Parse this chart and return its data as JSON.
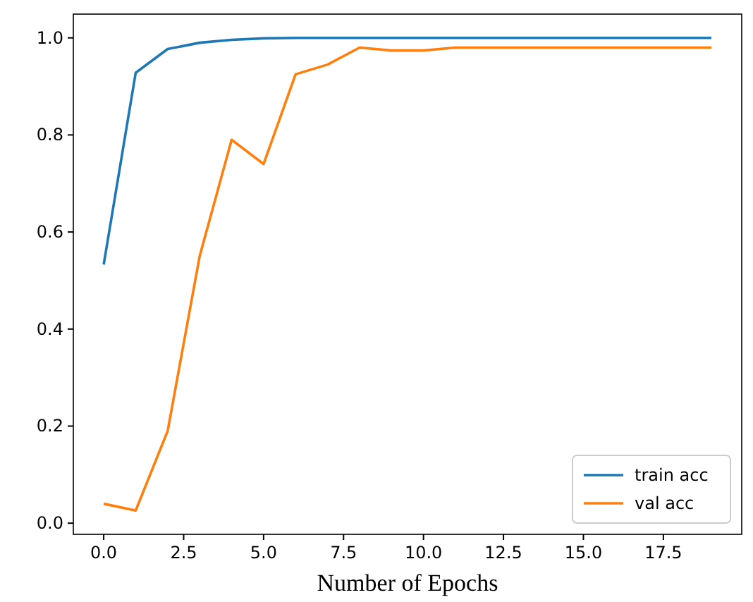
{
  "chart_data": {
    "type": "line",
    "xlabel": "Number of Epochs",
    "x": [
      0,
      1,
      2,
      3,
      4,
      5,
      6,
      7,
      8,
      9,
      10,
      11,
      12,
      13,
      14,
      15,
      16,
      17,
      18,
      19
    ],
    "series": [
      {
        "name": "train acc",
        "color": "#1f77b4",
        "values": [
          0.533,
          0.928,
          0.977,
          0.99,
          0.996,
          0.999,
          1.0,
          1.0,
          1.0,
          1.0,
          1.0,
          1.0,
          1.0,
          1.0,
          1.0,
          1.0,
          1.0,
          1.0,
          1.0,
          1.0
        ]
      },
      {
        "name": "val acc",
        "color": "#ff7f0e",
        "values": [
          0.04,
          0.026,
          0.19,
          0.55,
          0.79,
          0.74,
          0.925,
          0.945,
          0.98,
          0.974,
          0.974,
          0.98,
          0.98,
          0.98,
          0.98,
          0.98,
          0.98,
          0.98,
          0.98,
          0.98
        ]
      }
    ],
    "xlim": [
      -0.95,
      19.95
    ],
    "ylim": [
      -0.023,
      1.049
    ],
    "xticks": [
      {
        "value": 0,
        "label": "0.0"
      },
      {
        "value": 2.5,
        "label": "2.5"
      },
      {
        "value": 5,
        "label": "5.0"
      },
      {
        "value": 7.5,
        "label": "7.5"
      },
      {
        "value": 10,
        "label": "10.0"
      },
      {
        "value": 12.5,
        "label": "12.5"
      },
      {
        "value": 15,
        "label": "15.0"
      },
      {
        "value": 17.5,
        "label": "17.5"
      }
    ],
    "yticks": [
      {
        "value": 0,
        "label": "0.0"
      },
      {
        "value": 0.2,
        "label": "0.2"
      },
      {
        "value": 0.4,
        "label": "0.4"
      },
      {
        "value": 0.6,
        "label": "0.6"
      },
      {
        "value": 0.8,
        "label": "0.8"
      },
      {
        "value": 1,
        "label": "1.0"
      }
    ],
    "legend": "bottom right",
    "grid": false,
    "line_style": "solid",
    "marker": "none"
  }
}
